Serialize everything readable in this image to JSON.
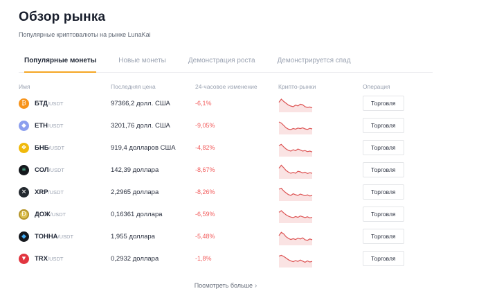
{
  "page": {
    "title": "Обзор рынка",
    "subtitle": "Популярные криптовалюты на рынке LunaKai"
  },
  "tabs": [
    {
      "label": "Популярные монеты",
      "active": true
    },
    {
      "label": "Новые монеты",
      "active": false
    },
    {
      "label": "Демонстрация роста",
      "active": false
    },
    {
      "label": "Демонстрируется спад",
      "active": false
    }
  ],
  "table": {
    "columns": [
      "Имя",
      "Последняя цена",
      "24-часовое изменение",
      "Крипто-рынки",
      "Операция"
    ],
    "trade_button_label": "Торговля",
    "rows": [
      {
        "base": "БТД",
        "quote": "/USDT",
        "price": "97366,2 долл. США",
        "change": "-6,1%",
        "icon": {
          "name": "btc-icon",
          "glyph": "₿",
          "bg": "#F7931A",
          "glyph_color": "#ffffff"
        },
        "spark": [
          0.62,
          0.85,
          0.68,
          0.55,
          0.42,
          0.35,
          0.3,
          0.42,
          0.36,
          0.48,
          0.44,
          0.3,
          0.25,
          0.28,
          0.22
        ]
      },
      {
        "base": "ETH",
        "quote": "/USDT",
        "price": "3201,76 долл. США",
        "change": "-9,05%",
        "icon": {
          "name": "eth-icon",
          "glyph": "◆",
          "bg": "#8c9fee",
          "glyph_color": "#ffffff"
        },
        "spark": [
          0.8,
          0.72,
          0.55,
          0.38,
          0.28,
          0.25,
          0.33,
          0.28,
          0.36,
          0.32,
          0.38,
          0.3,
          0.26,
          0.34,
          0.3
        ]
      },
      {
        "base": "БНБ",
        "quote": "/USDT",
        "price": "919,4 долларов США",
        "change": "-4,82%",
        "icon": {
          "name": "bnb-icon",
          "glyph": "❖",
          "bg": "#F0B90B",
          "glyph_color": "#ffffff"
        },
        "spark": [
          0.7,
          0.78,
          0.6,
          0.45,
          0.35,
          0.3,
          0.4,
          0.33,
          0.45,
          0.38,
          0.3,
          0.34,
          0.26,
          0.3,
          0.24
        ]
      },
      {
        "base": "СОЛ",
        "quote": "/USDT",
        "price": "142,39 доллара",
        "change": "-8,67%",
        "icon": {
          "name": "sol-icon",
          "glyph": "≡",
          "bg": "#14171c",
          "glyph_color": "#64e3b4"
        },
        "spark": [
          0.66,
          0.88,
          0.7,
          0.5,
          0.38,
          0.3,
          0.36,
          0.3,
          0.44,
          0.4,
          0.32,
          0.38,
          0.28,
          0.34,
          0.3
        ]
      },
      {
        "base": "XRP",
        "quote": "/USDT",
        "price": "2,2965 доллара",
        "change": "-8,26%",
        "icon": {
          "name": "xrp-icon",
          "glyph": "✕",
          "bg": "#23292f",
          "glyph_color": "#ffffff"
        },
        "spark": [
          0.75,
          0.82,
          0.62,
          0.48,
          0.36,
          0.3,
          0.42,
          0.35,
          0.3,
          0.4,
          0.34,
          0.28,
          0.34,
          0.26,
          0.3
        ]
      },
      {
        "base": "ДОЖ",
        "quote": "/USDT",
        "price": "0,16361 доллара",
        "change": "-6,59%",
        "icon": {
          "name": "doge-icon",
          "glyph": "Ð",
          "bg": "#dcbf4e",
          "glyph_color": "#ffffff",
          "border": "#b5962e"
        },
        "spark": [
          0.68,
          0.8,
          0.64,
          0.5,
          0.4,
          0.34,
          0.3,
          0.38,
          0.32,
          0.42,
          0.36,
          0.3,
          0.36,
          0.28,
          0.32
        ]
      },
      {
        "base": "ТОННА",
        "quote": "/USDT",
        "price": "1,955 доллара",
        "change": "-5,48%",
        "icon": {
          "name": "ton-icon",
          "glyph": "◆",
          "bg": "#15181d",
          "glyph_color": "#45aef5"
        },
        "spark": [
          0.6,
          0.84,
          0.72,
          0.52,
          0.4,
          0.32,
          0.38,
          0.32,
          0.42,
          0.36,
          0.44,
          0.3,
          0.26,
          0.36,
          0.3
        ]
      },
      {
        "base": "TRX",
        "quote": "/USDT",
        "price": "0,2932 доллара",
        "change": "-1,8%",
        "icon": {
          "name": "trx-icon",
          "glyph": "▼",
          "bg": "#e1353f",
          "glyph_color": "#ffffff"
        },
        "spark": [
          0.72,
          0.78,
          0.7,
          0.58,
          0.46,
          0.38,
          0.32,
          0.4,
          0.34,
          0.44,
          0.36,
          0.28,
          0.38,
          0.3,
          0.34
        ]
      }
    ]
  },
  "footer": {
    "more_label": "Посмотреть больше",
    "arrow": "›"
  },
  "colors": {
    "accent": "#f5a623",
    "negative": "#f25c5c",
    "chart_line": "#dd5353",
    "chart_fill": "rgba(221,83,83,0.16)"
  }
}
